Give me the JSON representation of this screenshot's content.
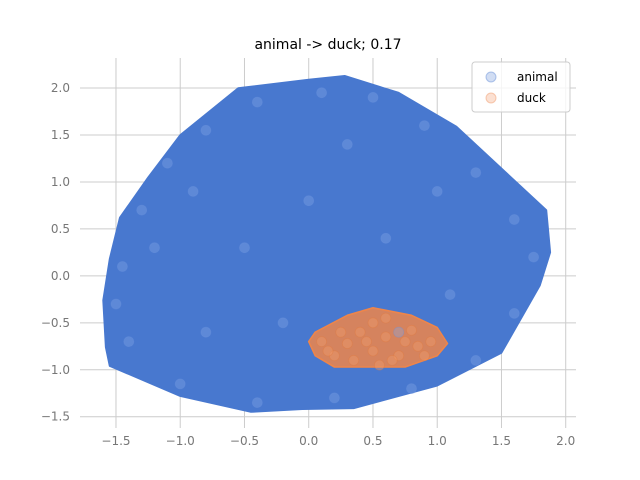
{
  "chart_data": {
    "type": "scatter",
    "title": "animal -> duck; 0.17",
    "xlabel": "",
    "ylabel": "",
    "xlim": [
      -1.78,
      2.08
    ],
    "ylim": [
      -1.62,
      2.32
    ],
    "xticks": [
      -1.5,
      -1.0,
      -0.5,
      0.0,
      0.5,
      1.0,
      1.5,
      2.0
    ],
    "xtick_labels": [
      "−1.5",
      "−1.0",
      "−0.5",
      "0.0",
      "0.5",
      "1.0",
      "1.5",
      "2.0"
    ],
    "yticks": [
      -1.5,
      -1.0,
      -0.5,
      0.0,
      0.5,
      1.0,
      1.5,
      2.0
    ],
    "ytick_labels": [
      "−1.5",
      "−1.0",
      "−0.5",
      "0.0",
      "0.5",
      "1.0",
      "1.5",
      "2.0"
    ],
    "grid": true,
    "legend_position": "top-right",
    "series": [
      {
        "name": "animal",
        "color": "#4878cf",
        "hull": [
          [
            -1.6,
            -0.26
          ],
          [
            -1.55,
            0.18
          ],
          [
            -1.47,
            0.62
          ],
          [
            -1.25,
            1.05
          ],
          [
            -1.0,
            1.5
          ],
          [
            -0.55,
            2.0
          ],
          [
            0.0,
            2.09
          ],
          [
            0.28,
            2.13
          ],
          [
            0.7,
            1.95
          ],
          [
            1.15,
            1.59
          ],
          [
            1.85,
            0.7
          ],
          [
            1.88,
            0.25
          ],
          [
            1.8,
            -0.1
          ],
          [
            1.5,
            -0.82
          ],
          [
            1.0,
            -1.17
          ],
          [
            0.35,
            -1.41
          ],
          [
            -0.05,
            -1.42
          ],
          [
            -0.45,
            -1.45
          ],
          [
            -1.0,
            -1.28
          ],
          [
            -1.55,
            -0.96
          ],
          [
            -1.58,
            -0.76
          ]
        ],
        "points": [
          [
            -1.45,
            0.1
          ],
          [
            -1.3,
            0.7
          ],
          [
            -1.1,
            1.2
          ],
          [
            -0.8,
            1.55
          ],
          [
            -0.4,
            1.85
          ],
          [
            0.1,
            1.95
          ],
          [
            0.5,
            1.9
          ],
          [
            0.9,
            1.6
          ],
          [
            1.3,
            1.1
          ],
          [
            1.6,
            0.6
          ],
          [
            1.75,
            0.2
          ],
          [
            1.6,
            -0.4
          ],
          [
            1.3,
            -0.9
          ],
          [
            0.8,
            -1.2
          ],
          [
            0.2,
            -1.3
          ],
          [
            -0.4,
            -1.35
          ],
          [
            -1.0,
            -1.15
          ],
          [
            -1.4,
            -0.7
          ],
          [
            -1.5,
            -0.3
          ],
          [
            -0.9,
            0.9
          ],
          [
            -0.5,
            0.3
          ],
          [
            0.0,
            0.8
          ],
          [
            0.6,
            0.4
          ],
          [
            1.1,
            -0.2
          ],
          [
            -0.2,
            -0.5
          ],
          [
            -0.8,
            -0.6
          ],
          [
            0.3,
            1.4
          ],
          [
            1.0,
            0.9
          ],
          [
            -1.2,
            0.3
          ],
          [
            0.7,
            -0.6
          ]
        ]
      },
      {
        "name": "duck",
        "color": "#ee854a",
        "hull": [
          [
            0.0,
            -0.7
          ],
          [
            0.05,
            -0.85
          ],
          [
            0.2,
            -0.97
          ],
          [
            0.5,
            -0.97
          ],
          [
            0.75,
            -0.97
          ],
          [
            1.0,
            -0.85
          ],
          [
            1.08,
            -0.72
          ],
          [
            1.0,
            -0.55
          ],
          [
            0.8,
            -0.42
          ],
          [
            0.5,
            -0.34
          ],
          [
            0.3,
            -0.42
          ],
          [
            0.05,
            -0.6
          ]
        ],
        "points": [
          [
            0.1,
            -0.7
          ],
          [
            0.2,
            -0.85
          ],
          [
            0.35,
            -0.9
          ],
          [
            0.5,
            -0.8
          ],
          [
            0.6,
            -0.65
          ],
          [
            0.7,
            -0.85
          ],
          [
            0.85,
            -0.75
          ],
          [
            0.95,
            -0.7
          ],
          [
            0.5,
            -0.5
          ],
          [
            0.4,
            -0.6
          ],
          [
            0.3,
            -0.72
          ],
          [
            0.65,
            -0.9
          ],
          [
            0.8,
            -0.58
          ],
          [
            0.55,
            -0.95
          ],
          [
            0.25,
            -0.6
          ],
          [
            0.45,
            -0.7
          ],
          [
            0.75,
            -0.7
          ],
          [
            0.6,
            -0.45
          ],
          [
            0.15,
            -0.8
          ],
          [
            0.9,
            -0.85
          ]
        ]
      }
    ]
  }
}
